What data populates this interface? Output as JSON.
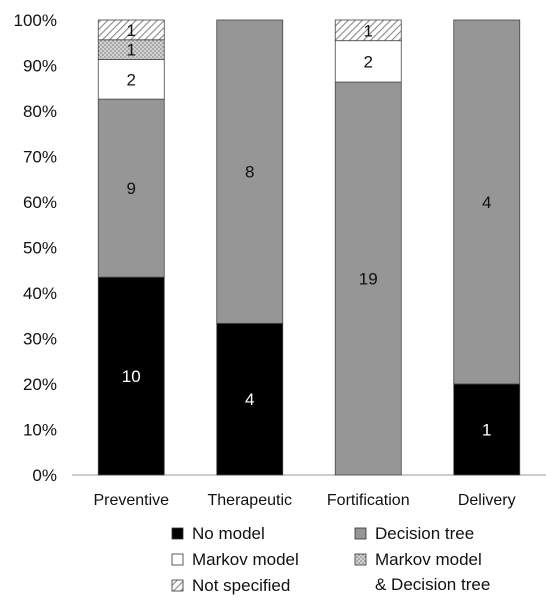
{
  "chart_data": {
    "type": "stacked-bar-100",
    "categories": [
      "Preventive",
      "Therapeutic",
      "Fortification",
      "Delivery"
    ],
    "series": [
      {
        "name": "No model",
        "values": [
          10,
          4,
          0,
          1
        ],
        "color": "#000000",
        "pattern": "solid"
      },
      {
        "name": "Decision tree",
        "values": [
          9,
          8,
          19,
          4
        ],
        "color": "#969696",
        "pattern": "solid"
      },
      {
        "name": "Markov model",
        "values": [
          2,
          0,
          2,
          0
        ],
        "color": "#ffffff",
        "pattern": "solid"
      },
      {
        "name": "Markov model & Decision tree",
        "values": [
          1,
          0,
          0,
          0
        ],
        "color": "#c8c8c8",
        "pattern": "dots"
      },
      {
        "name": "Not specified",
        "values": [
          1,
          0,
          1,
          0
        ],
        "color": "#ffffff",
        "pattern": "diagonal"
      }
    ],
    "y_ticks": [
      "0%",
      "10%",
      "20%",
      "30%",
      "40%",
      "50%",
      "60%",
      "70%",
      "80%",
      "90%",
      "100%"
    ],
    "ylim": [
      0,
      100
    ],
    "grid": false,
    "legend": {
      "placement": "bottom",
      "columns": 2,
      "entries": [
        {
          "text": "No model",
          "series": 0
        },
        {
          "text": "Decision tree",
          "series": 1
        },
        {
          "text": "Markov model",
          "series": 2
        },
        {
          "text": "Markov model\n& Decision tree",
          "series": 3
        },
        {
          "text": "Not specified",
          "series": 4
        }
      ]
    }
  }
}
